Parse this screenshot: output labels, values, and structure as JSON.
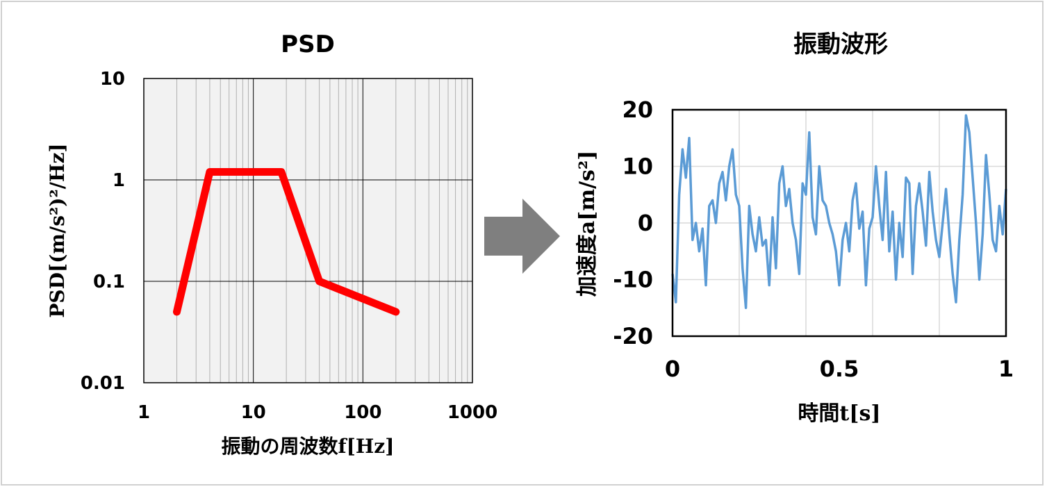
{
  "charts_colors": {
    "psd_line": "#ff0000",
    "wave_line": "#5b9bd5",
    "arrow": "#7f7f7f",
    "psd_bg": "#f2f2f2"
  },
  "arrow_icon": "right-arrow",
  "chart_data": [
    {
      "type": "line",
      "title": "PSD",
      "xlabel": "振動の周波数f[Hz]",
      "ylabel": "PSD[(m/s²)²/Hz]",
      "xscale": "log",
      "yscale": "log",
      "xlim": [
        1,
        1000
      ],
      "ylim": [
        0.01,
        10
      ],
      "xticks": [
        "1",
        "10",
        "100",
        "1000"
      ],
      "yticks": [
        "10",
        "1",
        "0.1",
        "0.01"
      ],
      "grid": true,
      "x": [
        2,
        4,
        18,
        40,
        200
      ],
      "y": [
        0.05,
        1.2,
        1.2,
        0.1,
        0.05
      ]
    },
    {
      "type": "line",
      "title": "振動波形",
      "xlabel": "時間t[s]",
      "ylabel": "加速度a[m/s²]",
      "xlim": [
        0,
        1
      ],
      "ylim": [
        -20,
        20
      ],
      "xticks": [
        "0",
        "0.5",
        "1"
      ],
      "yticks": [
        "20",
        "10",
        "0",
        "-10",
        "-20"
      ],
      "grid": true,
      "x_start": 0,
      "x_step": 0.01,
      "y": [
        -9,
        -14,
        5,
        13,
        8,
        15,
        -3,
        0,
        -5,
        -1,
        -11,
        3,
        4,
        0,
        7,
        9,
        4,
        10,
        13,
        5,
        3,
        -8,
        -15,
        3,
        -2,
        -5,
        1,
        -4,
        -3,
        -11,
        1,
        -8,
        7,
        10,
        3,
        6,
        0,
        -3,
        -9,
        7,
        5,
        16,
        1,
        -2,
        10,
        4,
        3,
        0,
        -2,
        -5,
        -11,
        -3,
        0,
        -5,
        4,
        7,
        -1,
        2,
        -11,
        -1,
        1,
        10,
        3,
        -3,
        9,
        -5,
        2,
        -10,
        0,
        -6,
        8,
        7,
        -9,
        3,
        7,
        2,
        -4,
        9,
        2,
        -3,
        -6,
        0,
        6,
        -2,
        -9,
        -14,
        -3,
        5,
        19,
        16,
        8,
        0,
        -10,
        -2,
        12,
        5,
        -3,
        -5,
        3,
        -2,
        6
      ]
    }
  ]
}
